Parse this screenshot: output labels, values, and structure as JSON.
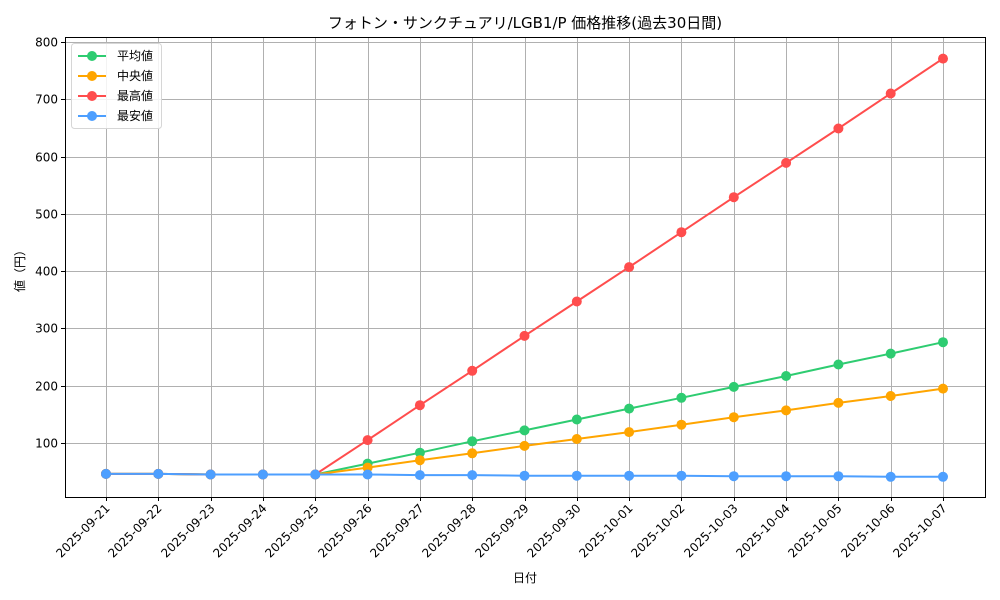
{
  "chart_data": {
    "type": "line",
    "title": "フォトン・サンクチュアリ/LGB1/P 価格推移(過去30日間)",
    "xlabel": "日付",
    "ylabel": "値（円）",
    "ylim": [
      4,
      802
    ],
    "yticks": [
      100,
      200,
      300,
      400,
      500,
      600,
      700,
      800
    ],
    "grid": true,
    "legend_position": "upper left",
    "categories": [
      "2025-09-21",
      "2025-09-22",
      "2025-09-23",
      "2025-09-24",
      "2025-09-25",
      "2025-09-26",
      "2025-09-27",
      "2025-09-28",
      "2025-09-29",
      "2025-09-30",
      "2025-10-01",
      "2025-10-02",
      "2025-10-03",
      "2025-10-04",
      "2025-10-05",
      "2025-10-06",
      "2025-10-07"
    ],
    "series": [
      {
        "name": "平均値",
        "color": "#2ecc71",
        "values": [
          46,
          46,
          45,
          45,
          45,
          64,
          83,
          103,
          122,
          141,
          160,
          179,
          198,
          217,
          237,
          256,
          276
        ]
      },
      {
        "name": "中央値",
        "color": "#ffa500",
        "values": [
          46,
          46,
          45,
          45,
          45,
          57,
          70,
          82,
          95,
          107,
          119,
          132,
          145,
          157,
          170,
          182,
          195
        ]
      },
      {
        "name": "最高値",
        "color": "#ff4d4d",
        "values": [
          46,
          46,
          45,
          45,
          45,
          105,
          166,
          226,
          287,
          347,
          407,
          468,
          529,
          589,
          649,
          710,
          771
        ]
      },
      {
        "name": "最安値",
        "color": "#4d9fff",
        "values": [
          46,
          46,
          45,
          45,
          45,
          45,
          44,
          44,
          43,
          43,
          43,
          43,
          42,
          42,
          42,
          41,
          41
        ]
      }
    ]
  }
}
